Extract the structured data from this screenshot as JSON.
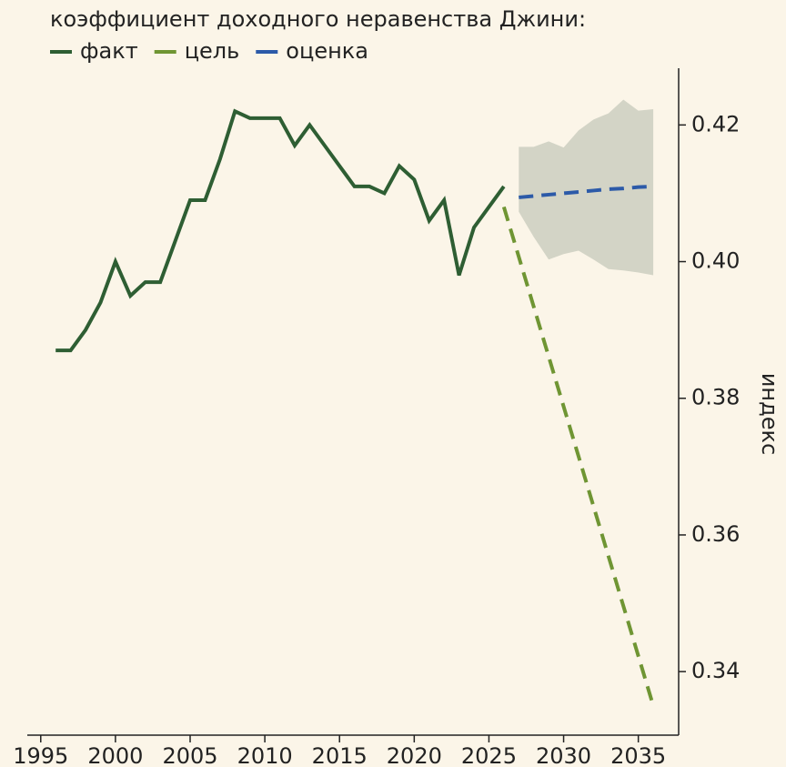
{
  "chart_data": {
    "type": "line",
    "title": "коэффициент доходного неравенства Джини:",
    "y_label": "индекс",
    "xlim": [
      1994.1,
      2037.7
    ],
    "ylim": [
      0.3307,
      0.4283
    ],
    "xticks": [
      1995,
      2000,
      2005,
      2010,
      2015,
      2020,
      2025,
      2030,
      2035
    ],
    "yticks": [
      0.34,
      0.36,
      0.38,
      0.4,
      0.42
    ],
    "series": [
      {
        "name": "факт",
        "color": "#2e5e33",
        "dash": false,
        "x": [
          1996,
          1997,
          1998,
          1999,
          2000,
          2001,
          2002,
          2003,
          2004,
          2005,
          2006,
          2007,
          2008,
          2009,
          2010,
          2011,
          2012,
          2013,
          2014,
          2015,
          2016,
          2017,
          2018,
          2019,
          2020,
          2021,
          2022,
          2023,
          2024,
          2025,
          2026
        ],
        "values": [
          0.387,
          0.387,
          0.39,
          0.394,
          0.4,
          0.395,
          0.397,
          0.397,
          0.403,
          0.409,
          0.409,
          0.415,
          0.422,
          0.421,
          0.421,
          0.421,
          0.417,
          0.42,
          0.417,
          0.414,
          0.411,
          0.411,
          0.41,
          0.414,
          0.412,
          0.406,
          0.409,
          0.398,
          0.405,
          0.408,
          0.411
        ]
      },
      {
        "name": "цель",
        "color": "#6f9533",
        "dash": true,
        "x": [
          2026,
          2036
        ],
        "values": [
          0.408,
          0.335
        ]
      },
      {
        "name": "оценка",
        "color": "#2c5aa8",
        "dash": true,
        "x": [
          2027,
          2028,
          2029,
          2030,
          2031,
          2032,
          2033,
          2034,
          2035,
          2036
        ],
        "values": [
          0.4094,
          0.4096,
          0.4098,
          0.41,
          0.4102,
          0.4104,
          0.4106,
          0.4107,
          0.4109,
          0.411
        ]
      }
    ],
    "band": {
      "color": "#d3d4c6",
      "x": [
        2027,
        2028,
        2029,
        2030,
        2031,
        2032,
        2033,
        2034,
        2035,
        2036
      ],
      "upper": [
        0.4168,
        0.4168,
        0.4176,
        0.4167,
        0.4192,
        0.4208,
        0.4217,
        0.4237,
        0.4221,
        0.4223
      ],
      "lower": [
        0.4073,
        0.4036,
        0.4003,
        0.4011,
        0.4016,
        0.4003,
        0.3989,
        0.3987,
        0.3984,
        0.398
      ]
    }
  }
}
